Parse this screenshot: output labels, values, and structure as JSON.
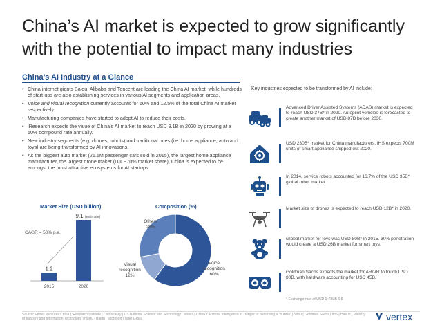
{
  "title": "China’s AI market is expected to grow significantly with the potential to impact many industries",
  "section_title": "China’s AI Industry at a Glance",
  "bullets": [
    "China internet giants Baidu, Alibaba and Tencent are leading the China AI market, while hundreds of start-ups are also establishing services in various AI segments and application areas.",
    "Voice and visual recognition currently accounts for 60% and 12.5% of the total China AI market respectively.",
    "Manufacturing companies have started to adopt AI to reduce their costs.",
    "iResearch expects the value of China’s AI market to reach USD 9.1B in 2020 by growing at a 50% compound rate annually.",
    "New industry segments (e.g. drones, robots) and traditional ones (i.e. home appliance, auto and toys) are being transformed by AI innovations.",
    "As the biggest auto market (21.1M passenger cars sold in 2015), the largest home appliance manufacturer, the largest drone maker (DJI ~70% market share), China is expected to be amongst the most attractive ecosystems for AI startups."
  ],
  "bullet_italic": "Voice and visual recognition",
  "market_size": {
    "title": "Market Size (USD billion)",
    "cagr_label": "CAGR = 50% p.a.",
    "bars": [
      {
        "year": "2015",
        "value": 1.2,
        "label": "1.2"
      },
      {
        "year": "2020",
        "value": 9.1,
        "label": "9.1",
        "note": "(estimate)"
      }
    ]
  },
  "composition": {
    "title": "Composition (%)",
    "slices": [
      {
        "name": "Voice recognition",
        "value": 60,
        "label_name": "Voice recognition",
        "label_value": "60%",
        "color": "#2e5597"
      },
      {
        "name": "Visual recognition",
        "value": 12,
        "label_name": "Visual recognition",
        "label_value": "12%",
        "color": "#8fa7d1"
      },
      {
        "name": "Others",
        "value": 28,
        "label_name": "Others",
        "label_value": "28%",
        "color": "#5b7fba"
      }
    ]
  },
  "chart_data": [
    {
      "type": "bar",
      "title": "Market Size (USD billion)",
      "categories": [
        "2015",
        "2020"
      ],
      "values": [
        1.2,
        9.1
      ],
      "annotations": [
        "CAGR = 50% p.a.",
        "(estimate)"
      ]
    },
    {
      "type": "pie",
      "title": "Composition (%)",
      "categories": [
        "Voice recognition",
        "Visual recognition",
        "Others"
      ],
      "values": [
        60,
        12,
        28
      ]
    }
  ],
  "industries_header": "Key industries expected to be transformed by AI include:",
  "industries": [
    {
      "icon": "car-icon",
      "text": "Advanced Driver Assisted Systems (ADAS) market is expected to reach USD 37B* in 2020. Autopilot vehicles is forecasted to create another market of USD 87B before 2030."
    },
    {
      "icon": "home-appliance-icon",
      "text": "USD 230B* market for China manufacturers. IHS expects 700M units of smart appliance shipped out 2020."
    },
    {
      "icon": "robot-icon",
      "text": "In 2014, service robots accounted for 16.7% of the USD 35B* global robot market."
    },
    {
      "icon": "drone-icon",
      "text": "Market size of drones is expected to reach USD 12B* in 2020."
    },
    {
      "icon": "teddy-bear-icon",
      "text": "Global market for toys was USD 80B* in 2015. 30% penetration would create a USD 26B market for smart toys."
    },
    {
      "icon": "vr-headset-icon",
      "text": "Goldman Sachs expects the market for AR/VR to touch USD 80B, with hardware accounting for USD 45B."
    }
  ],
  "footnote": "* Exchange rate of USD 1: RMB 6.6",
  "source": "Source: Vertex Ventures China | iResearch Institute | China Daily | US National Science and Technology Council | China’s Artificial Intelligence in Danger of Becoming a ‘Bubble’ | Sohu | Goldman Sachs | IHS | Hexun | Ministry of Industry and Information Technology | Huxiu | Baidu | Microsoft | Tiger Grass",
  "logo": "vertex",
  "colors": {
    "brand": "#1f4e8c",
    "bar": "#2e5597"
  }
}
